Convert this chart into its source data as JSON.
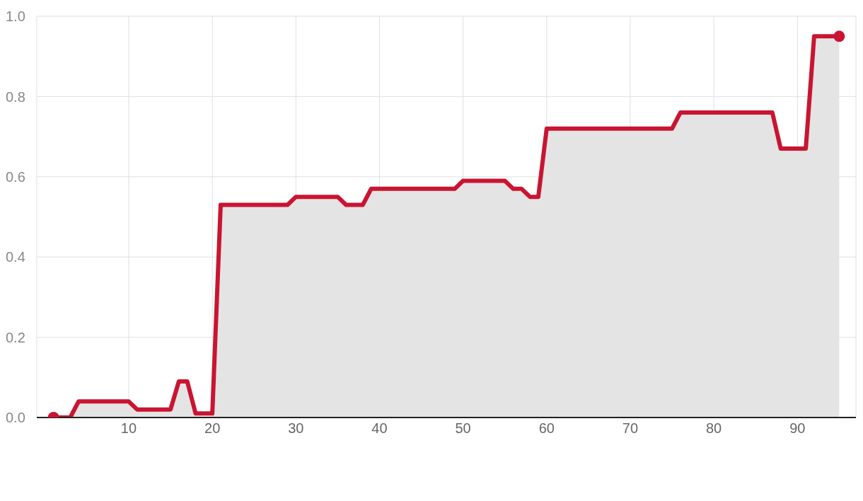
{
  "chart_data": {
    "type": "area",
    "x": [
      1,
      2,
      3,
      4,
      5,
      6,
      7,
      8,
      9,
      10,
      11,
      12,
      13,
      14,
      15,
      16,
      17,
      18,
      19,
      20,
      21,
      22,
      23,
      24,
      25,
      26,
      27,
      28,
      29,
      30,
      31,
      32,
      33,
      34,
      35,
      36,
      37,
      38,
      39,
      40,
      41,
      42,
      43,
      44,
      45,
      46,
      47,
      48,
      49,
      50,
      51,
      52,
      53,
      54,
      55,
      56,
      57,
      58,
      59,
      60,
      61,
      62,
      63,
      64,
      65,
      66,
      67,
      68,
      69,
      70,
      71,
      72,
      73,
      74,
      75,
      76,
      77,
      78,
      79,
      80,
      81,
      82,
      83,
      84,
      85,
      86,
      87,
      88,
      89,
      90,
      91,
      92,
      93,
      94,
      95
    ],
    "series": [
      {
        "color": "#c91432",
        "values": [
          0,
          0,
          0,
          0.04,
          0.04,
          0.04,
          0.04,
          0.04,
          0.04,
          0.04,
          0.02,
          0.02,
          0.02,
          0.02,
          0.02,
          0.09,
          0.09,
          0.01,
          0.01,
          0.01,
          0.53,
          0.53,
          0.53,
          0.53,
          0.53,
          0.53,
          0.53,
          0.53,
          0.53,
          0.55,
          0.55,
          0.55,
          0.55,
          0.55,
          0.55,
          0.53,
          0.53,
          0.53,
          0.57,
          0.57,
          0.57,
          0.57,
          0.57,
          0.57,
          0.57,
          0.57,
          0.57,
          0.57,
          0.57,
          0.59,
          0.59,
          0.59,
          0.59,
          0.59,
          0.59,
          0.57,
          0.57,
          0.55,
          0.55,
          0.72,
          0.72,
          0.72,
          0.72,
          0.72,
          0.72,
          0.72,
          0.72,
          0.72,
          0.72,
          0.72,
          0.72,
          0.72,
          0.72,
          0.72,
          0.72,
          0.76,
          0.76,
          0.76,
          0.76,
          0.76,
          0.76,
          0.76,
          0.76,
          0.76,
          0.76,
          0.76,
          0.76,
          0.67,
          0.67,
          0.67,
          0.67,
          0.95,
          0.95,
          0.95,
          0.95
        ]
      }
    ],
    "xlim": [
      -1,
      97
    ],
    "xticks": [
      10,
      20,
      30,
      40,
      50,
      60,
      70,
      80,
      90
    ],
    "ylim": [
      0,
      1
    ],
    "yticks": [
      {
        "value": 0,
        "label": "0.0"
      },
      {
        "value": 0.2,
        "label": "0.2"
      },
      {
        "value": 0.4,
        "label": "0.4"
      },
      {
        "value": 0.6,
        "label": "0.6"
      },
      {
        "value": 0.8,
        "label": "0.8"
      },
      {
        "value": 1,
        "label": "1.0"
      }
    ],
    "grid": true,
    "line_style": "solid"
  }
}
